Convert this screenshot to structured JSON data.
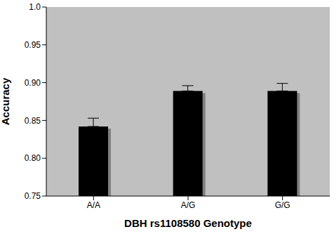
{
  "chart_data": {
    "type": "bar",
    "categories": [
      "A/A",
      "A/G",
      "G/G"
    ],
    "values": [
      0.842,
      0.889,
      0.889
    ],
    "errors": [
      0.011,
      0.007,
      0.01
    ],
    "color": "#000000",
    "x_label": "DBH rs1108580 Genotype",
    "y_label": "Accuracy",
    "ylim": [
      0.75,
      1.0
    ],
    "yticks": [
      0.75,
      {
        "value": 0.8,
        "label": "0.80"
      },
      0.85,
      {
        "value": 0.9,
        "label": "0.90"
      },
      0.95,
      {
        "value": 1.0,
        "label": "1.0"
      }
    ],
    "grid": false
  }
}
